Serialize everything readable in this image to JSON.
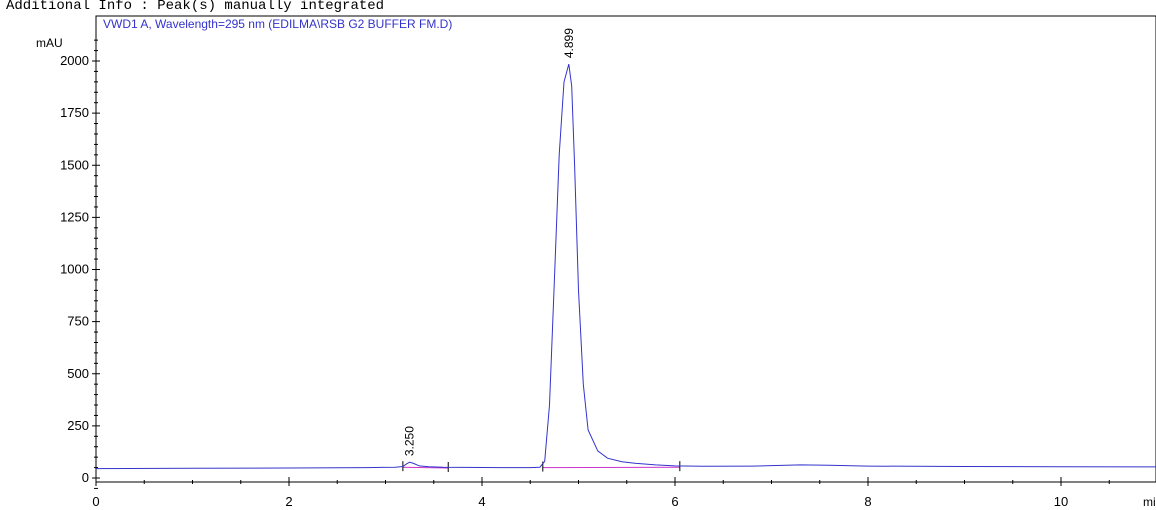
{
  "header_text": "Additional Info : Peak(s) manually integrated",
  "chart_data": {
    "type": "line",
    "title": "VWD1 A, Wavelength=295 nm (EDILMA\\RSB G2 BUFFER FM.D)",
    "ylabel": "mAU",
    "xlabel": "mi",
    "xlim": [
      0,
      11.0
    ],
    "ylim": [
      -50,
      2120
    ],
    "x_ticks": [
      "0",
      "2",
      "4",
      "6",
      "8",
      "10"
    ],
    "x_tick_values": [
      0,
      2,
      4,
      6,
      8,
      10
    ],
    "y_ticks": [
      "0",
      "250",
      "500",
      "750",
      "1000",
      "1250",
      "1500",
      "1750",
      "2000"
    ],
    "y_tick_values": [
      0,
      250,
      500,
      750,
      1000,
      1250,
      1500,
      1750,
      2000
    ],
    "grid": false,
    "series": [
      {
        "color": "#3333cc",
        "x": [
          0,
          1,
          2,
          2.8,
          3.1,
          3.18,
          3.22,
          3.25,
          3.29,
          3.35,
          3.45,
          3.6,
          3.8,
          4.2,
          4.5,
          4.6,
          4.65,
          4.7,
          4.75,
          4.8,
          4.85,
          4.899,
          4.93,
          4.96,
          5.0,
          5.05,
          5.1,
          5.2,
          5.3,
          5.45,
          5.6,
          5.8,
          6.0,
          6.3,
          6.8,
          7.3,
          7.6,
          8.0,
          9.0,
          10.0,
          11.0
        ],
        "values": [
          45,
          47,
          48,
          50,
          52,
          55,
          68,
          76,
          70,
          58,
          54,
          52,
          51,
          50,
          50,
          52,
          80,
          350,
          950,
          1550,
          1900,
          1985,
          1880,
          1500,
          900,
          450,
          230,
          130,
          95,
          78,
          70,
          63,
          58,
          56,
          57,
          63,
          61,
          57,
          55,
          54,
          53
        ]
      }
    ],
    "baselines": [
      {
        "color": "#cc33cc",
        "x": [
          3.18,
          3.65
        ],
        "values": [
          52,
          48
        ]
      },
      {
        "color": "#cc33cc",
        "x": [
          4.63,
          6.05
        ],
        "values": [
          50,
          52
        ]
      }
    ],
    "peak_labels": [
      {
        "x": 3.25,
        "y": 76,
        "text": "3.250"
      },
      {
        "x": 4.899,
        "y": 1985,
        "text": "4.899"
      }
    ]
  }
}
